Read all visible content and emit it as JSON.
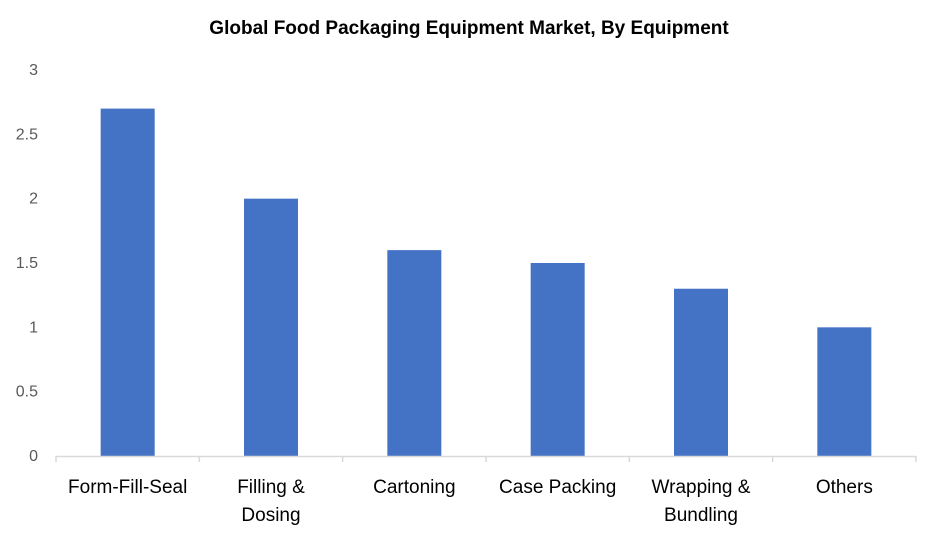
{
  "chart_data": {
    "type": "bar",
    "title": "Global Food Packaging Equipment Market, By Equipment",
    "xlabel": "",
    "ylabel": "",
    "categories": [
      "Form-Fill-Seal",
      "Filling & Dosing",
      "Cartoning",
      "Case Packing",
      "Wrapping & Bundling",
      "Others"
    ],
    "category_lines": [
      [
        "Form-Fill-Seal"
      ],
      [
        "Filling &",
        "Dosing"
      ],
      [
        "Cartoning"
      ],
      [
        "Case Packing"
      ],
      [
        "Wrapping &",
        "Bundling"
      ],
      [
        "Others"
      ]
    ],
    "values": [
      2.7,
      2.0,
      1.6,
      1.5,
      1.3,
      1.0
    ],
    "ylim": [
      0,
      3
    ],
    "yticks": [
      0,
      0.5,
      1,
      1.5,
      2,
      2.5,
      3
    ],
    "ytick_labels": [
      "0",
      "0.5",
      "1",
      "1.5",
      "2",
      "2.5",
      "3"
    ],
    "grid": false,
    "legend": "none",
    "bar_color": "#4472C4",
    "axis_color": "#D9D9D9"
  }
}
